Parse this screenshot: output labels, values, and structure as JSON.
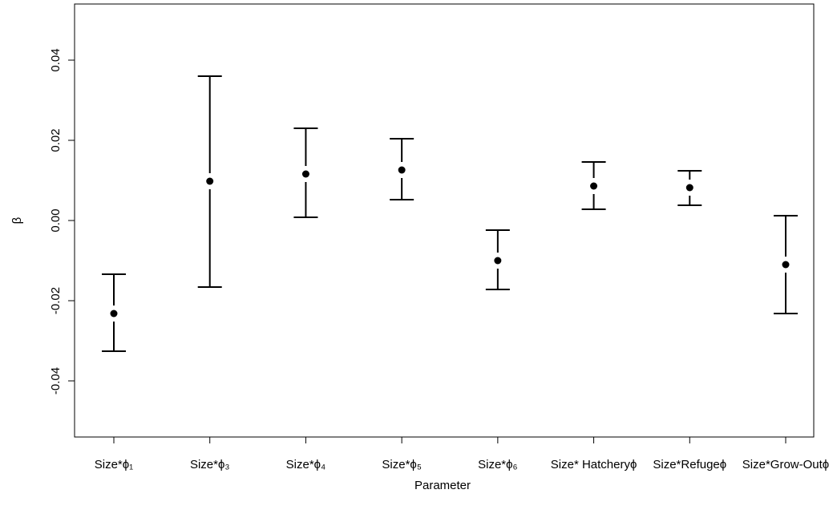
{
  "chart_data": {
    "type": "errorbar",
    "x_label": "Parameter",
    "y_label": "β",
    "categories": [
      "Size*ϕ₁",
      "Size*ϕ₃",
      "Size*ϕ₄",
      "Size*ϕ₅",
      "Size*ϕ₆",
      "Size* Hatcheryϕ",
      "Size*Refugeϕ",
      "Size*Grow-Outϕ"
    ],
    "values": [
      -0.0232,
      0.0098,
      0.0116,
      0.0126,
      -0.01,
      0.0086,
      0.0082,
      -0.011
    ],
    "lower": [
      -0.0326,
      -0.0166,
      0.0008,
      0.0052,
      -0.0172,
      0.0028,
      0.0038,
      -0.0232
    ],
    "upper": [
      -0.0134,
      0.036,
      0.023,
      0.0204,
      -0.0024,
      0.0146,
      0.0124,
      0.0012
    ],
    "color": "#000000",
    "ylim": [
      -0.054,
      0.054
    ],
    "yticks": [
      -0.04,
      -0.02,
      {
        "value": 0,
        "label": "0.00"
      },
      0.02,
      0.04
    ]
  }
}
